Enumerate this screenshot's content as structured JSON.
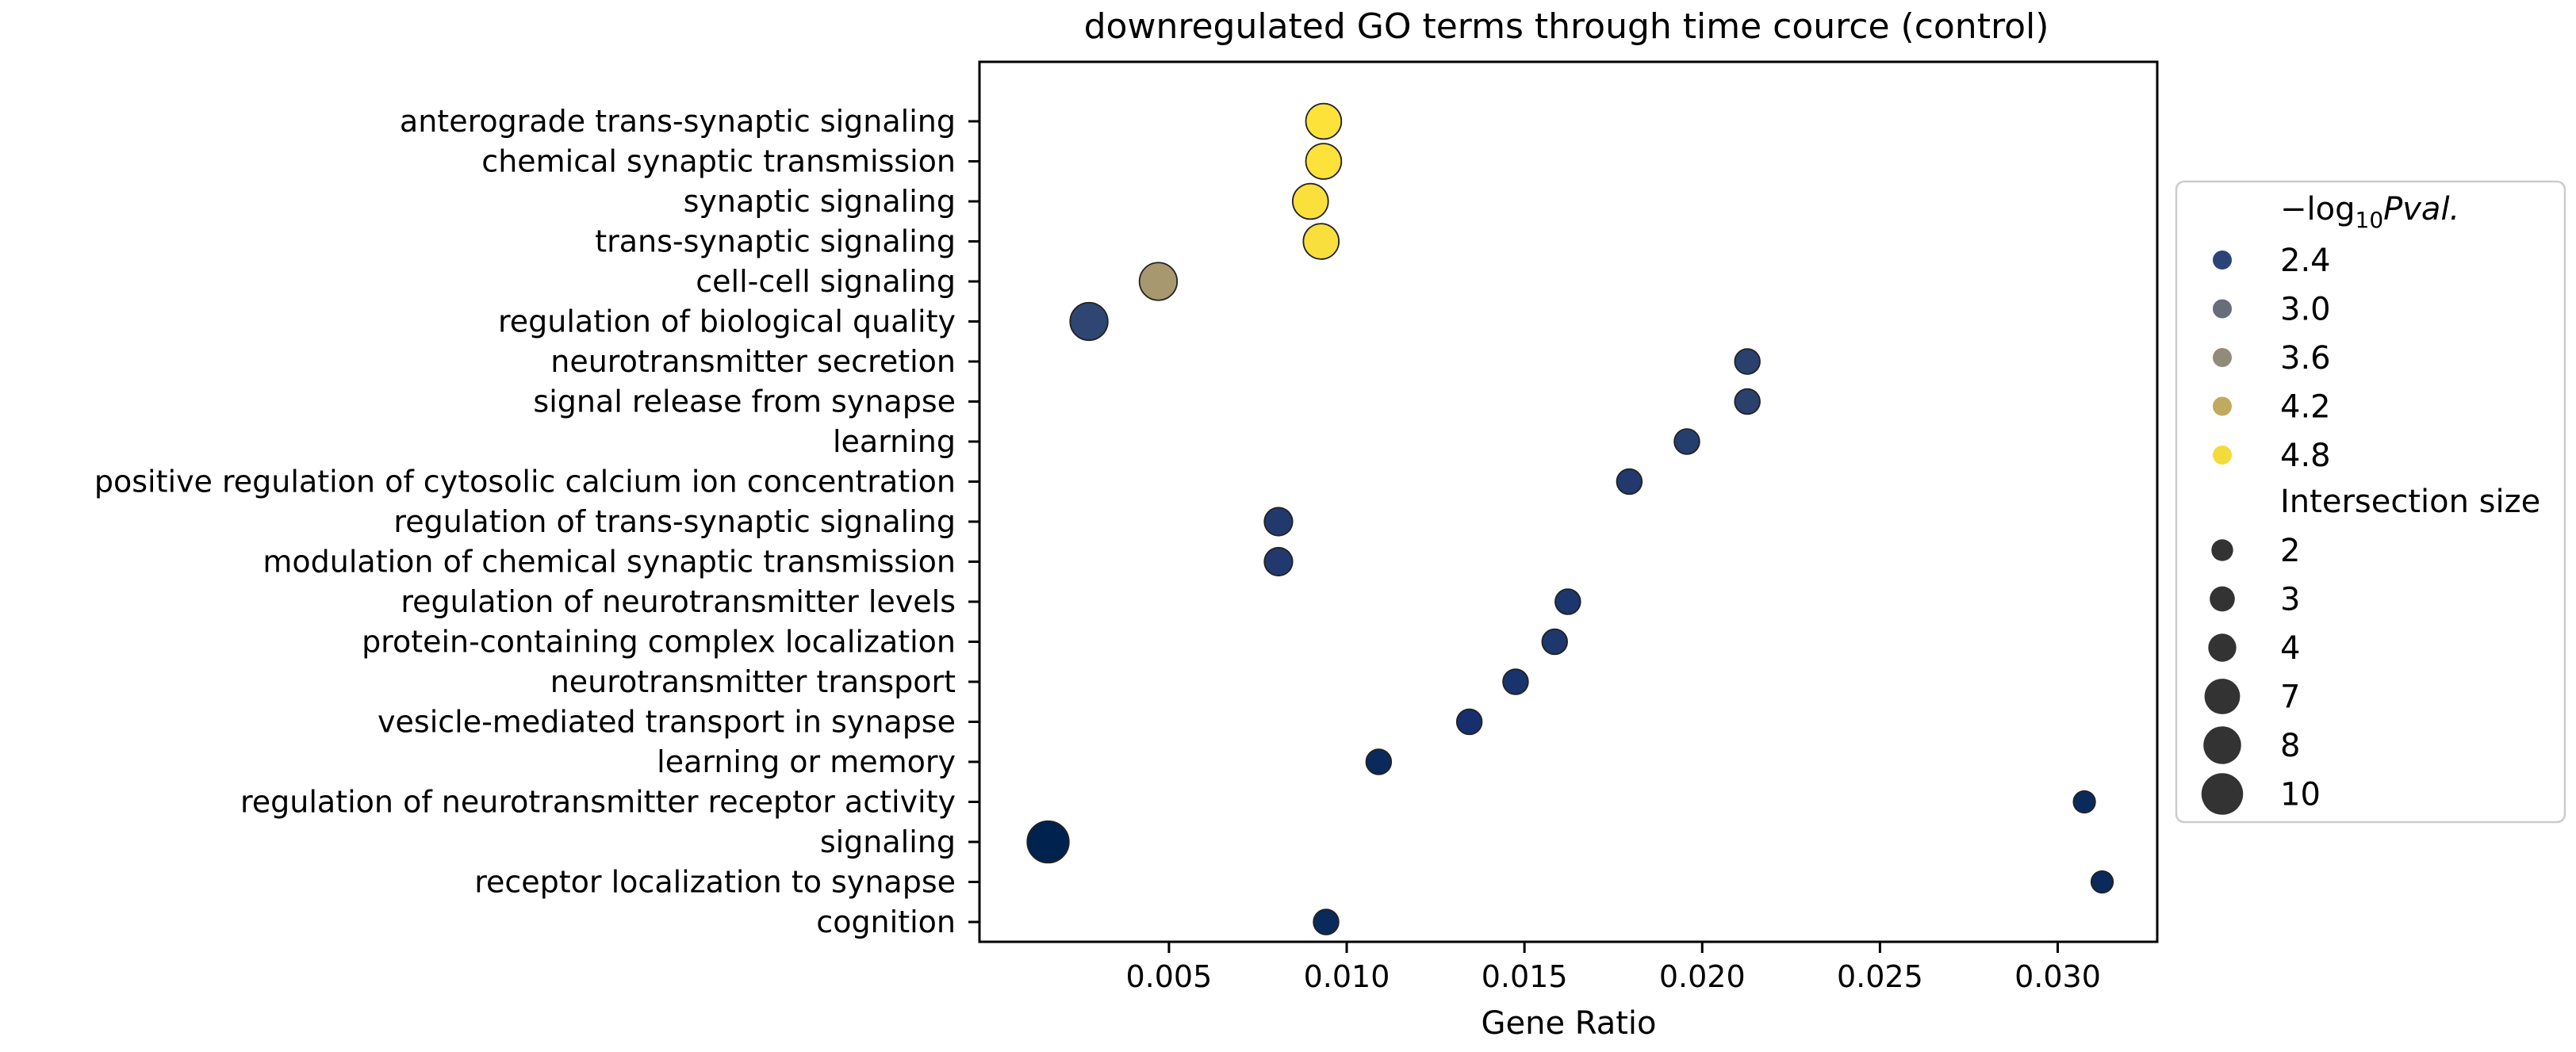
{
  "chart_data": {
    "type": "scatter",
    "title": "downregulated GO terms through time cource (control)",
    "xlabel": "Gene Ratio",
    "ylabel": "",
    "xlim": [
      -0.00033,
      0.0328
    ],
    "xticks": [
      0.005,
      0.01,
      0.015,
      0.02,
      0.025,
      0.03
    ],
    "xtick_labels": [
      "0.005",
      "0.010",
      "0.015",
      "0.020",
      "0.025",
      "0.030"
    ],
    "grid": false,
    "legend_placement": "outside-right",
    "colormap": "cividis",
    "color_title": "−log₁₀ Pval.",
    "size_title": "Intersection size",
    "color_legend": [
      {
        "label": "2.4",
        "value": 2.4,
        "color": "#2b4478"
      },
      {
        "label": "3.0",
        "value": 3.0,
        "color": "#686d79"
      },
      {
        "label": "3.6",
        "value": 3.6,
        "color": "#938b79"
      },
      {
        "label": "4.2",
        "value": 4.2,
        "color": "#bfaa5e"
      },
      {
        "label": "4.8",
        "value": 4.8,
        "color": "#f2dc3c"
      }
    ],
    "size_legend": [
      {
        "label": "2",
        "value": 2
      },
      {
        "label": "3",
        "value": 3
      },
      {
        "label": "4",
        "value": 4
      },
      {
        "label": "7",
        "value": 7
      },
      {
        "label": "8",
        "value": 8
      },
      {
        "label": "10",
        "value": 10
      }
    ],
    "terms": [
      {
        "term": "anterograde trans-synaptic signaling",
        "x": 0.00935,
        "size": 7,
        "color": "#fde23a"
      },
      {
        "term": "chemical synaptic transmission",
        "x": 0.00935,
        "size": 7,
        "color": "#fde23a"
      },
      {
        "term": "synaptic signaling",
        "x": 0.00898,
        "size": 7,
        "color": "#fbe03c"
      },
      {
        "term": "trans-synaptic signaling",
        "x": 0.00928,
        "size": 7,
        "color": "#f9df3d"
      },
      {
        "term": "cell-cell signaling",
        "x": 0.0047,
        "size": 8,
        "color": "#a8986f"
      },
      {
        "term": "regulation of biological quality",
        "x": 0.00275,
        "size": 8,
        "color": "#2f4673"
      },
      {
        "term": "neurotransmitter secretion",
        "x": 0.02127,
        "size": 3,
        "color": "#2a416e"
      },
      {
        "term": "signal release from synapse",
        "x": 0.02127,
        "size": 3,
        "color": "#2a416e"
      },
      {
        "term": "learning",
        "x": 0.01957,
        "size": 3,
        "color": "#263e6e"
      },
      {
        "term": "positive regulation of cytosolic calcium ion concentration",
        "x": 0.01795,
        "size": 3,
        "color": "#22396d"
      },
      {
        "term": "regulation of trans-synaptic signaling",
        "x": 0.00808,
        "size": 4,
        "color": "#22396d"
      },
      {
        "term": "modulation of chemical synaptic transmission",
        "x": 0.00808,
        "size": 4,
        "color": "#22396d"
      },
      {
        "term": "regulation of neurotransmitter levels",
        "x": 0.01622,
        "size": 3,
        "color": "#1d366d"
      },
      {
        "term": "protein-containing complex localization",
        "x": 0.01585,
        "size": 3,
        "color": "#1e376d"
      },
      {
        "term": "neurotransmitter transport",
        "x": 0.01475,
        "size": 3,
        "color": "#19336d"
      },
      {
        "term": "vesicle-mediated transport in synapse",
        "x": 0.01345,
        "size": 3,
        "color": "#15306c"
      },
      {
        "term": "learning or memory",
        "x": 0.0109,
        "size": 3,
        "color": "#0b2a5c"
      },
      {
        "term": "regulation of neurotransmitter receptor activity",
        "x": 0.03075,
        "size": 2,
        "color": "#0b2a5c"
      },
      {
        "term": "signaling",
        "x": 0.0016,
        "size": 10,
        "color": "#00224e"
      },
      {
        "term": "receptor localization to synapse",
        "x": 0.03125,
        "size": 2,
        "color": "#0b2a5c"
      },
      {
        "term": "cognition",
        "x": 0.00942,
        "size": 3,
        "color": "#0b2a5c"
      }
    ]
  }
}
